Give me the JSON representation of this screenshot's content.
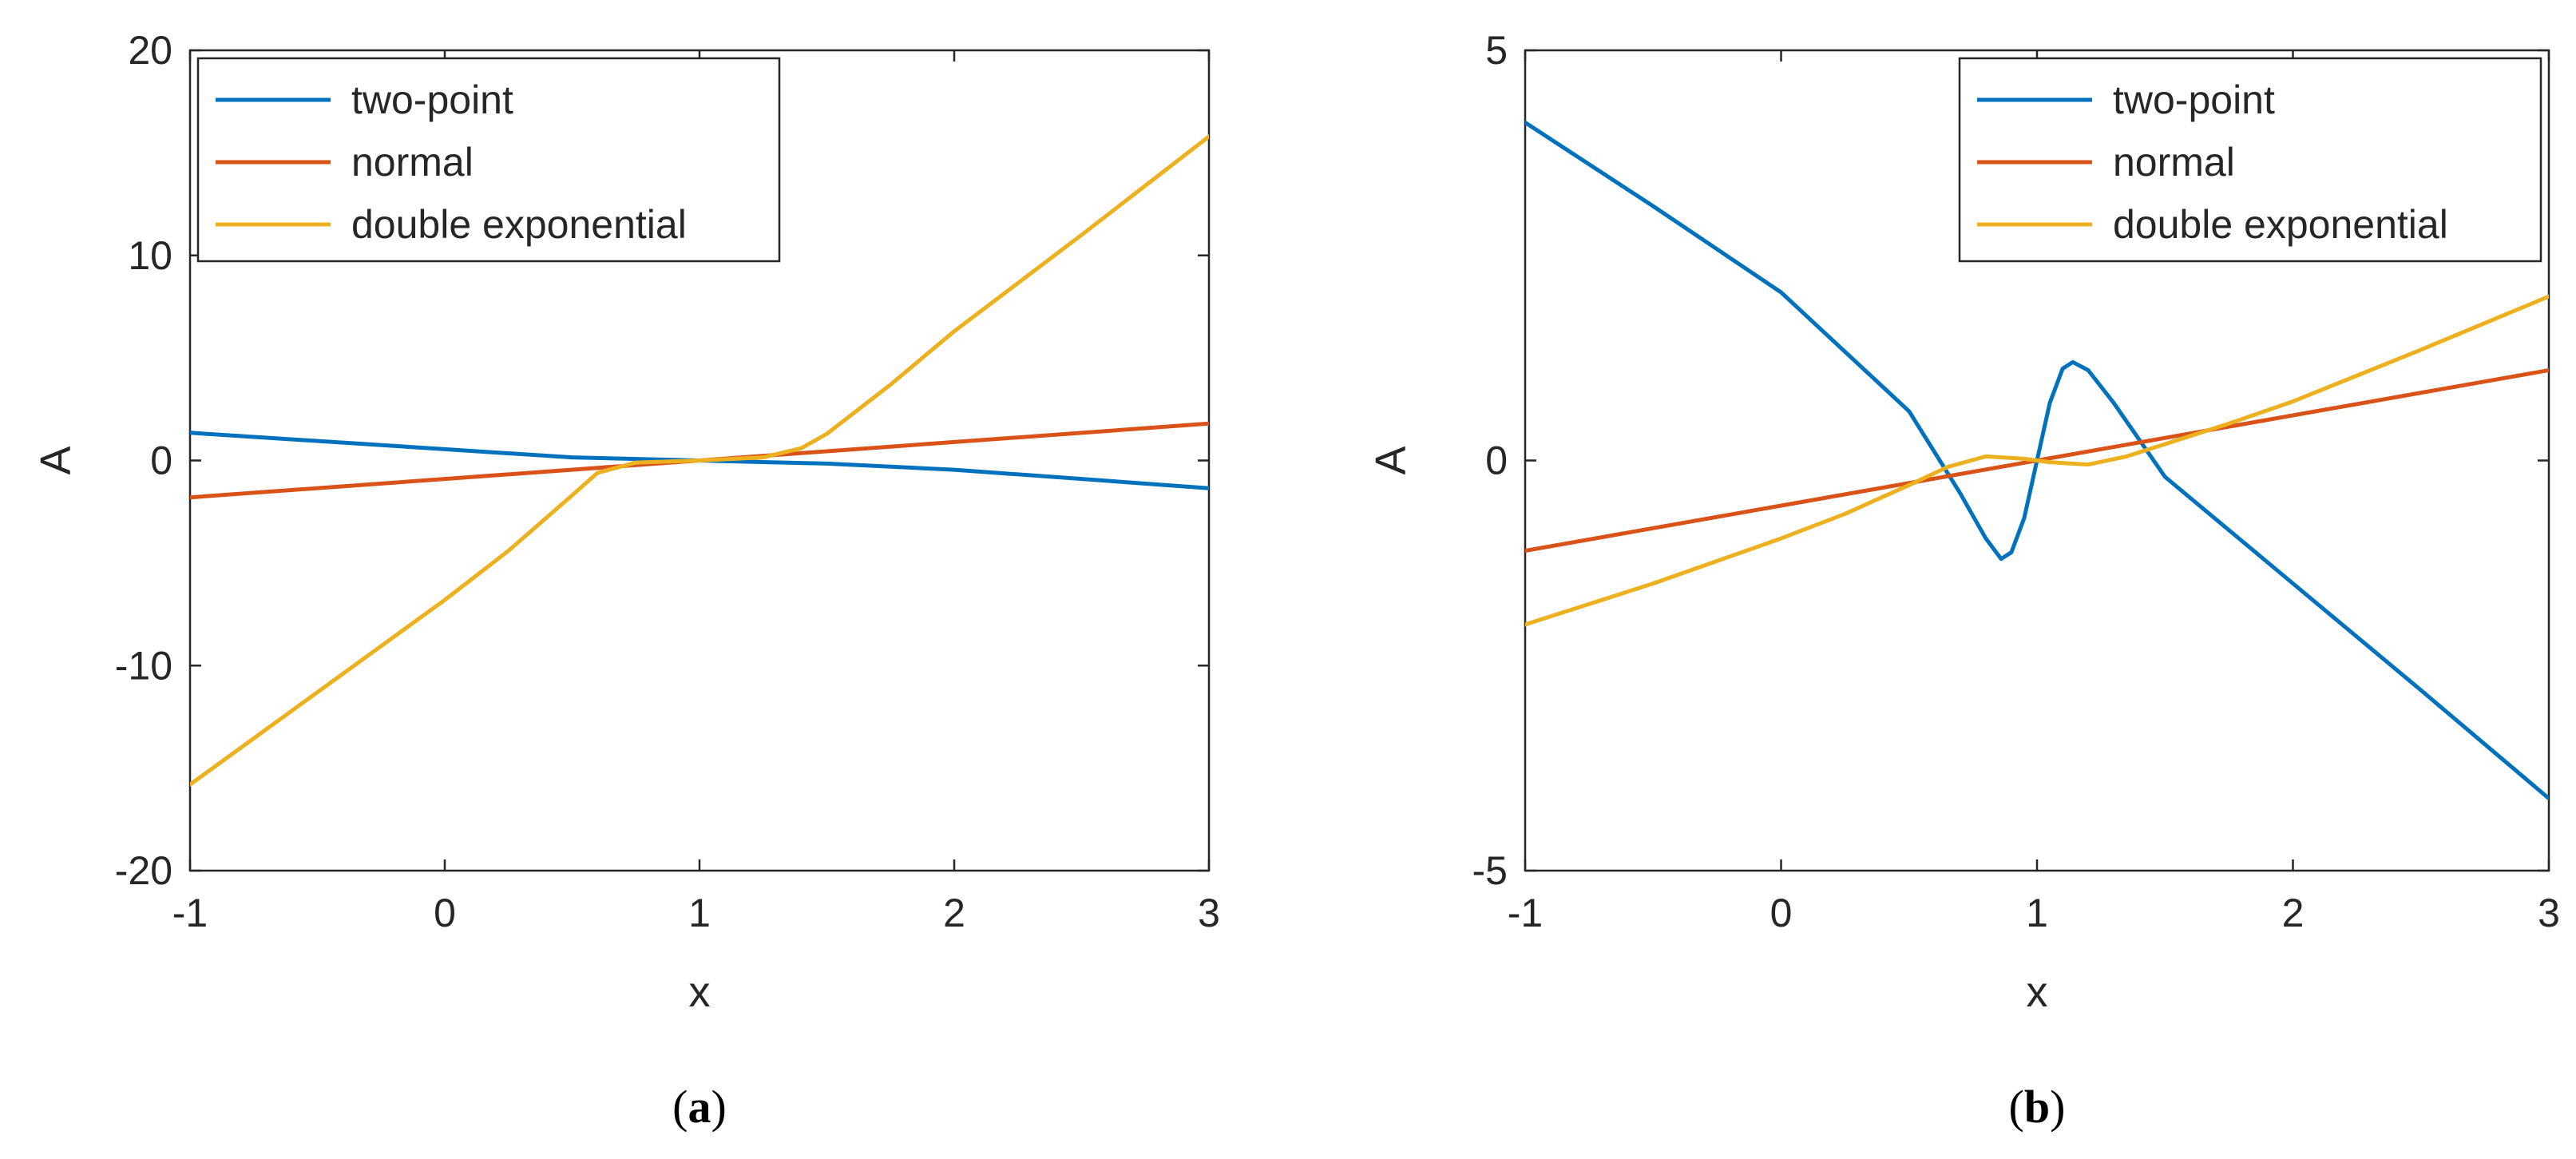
{
  "chart_data": [
    {
      "type": "line",
      "panel_label": "(a)",
      "xlabel": "x",
      "ylabel": "A",
      "xlim": [
        -1,
        3
      ],
      "ylim": [
        -20,
        20
      ],
      "xticks": [
        -1,
        0,
        1,
        2,
        3
      ],
      "yticks": [
        -20,
        -10,
        0,
        10,
        20
      ],
      "grid": false,
      "legend_position": "top-left",
      "series": [
        {
          "name": "two-point",
          "color": "#0072BD",
          "x": [
            -1,
            0,
            0.5,
            1,
            1.5,
            2,
            3
          ],
          "y": [
            1.35,
            0.55,
            0.15,
            0.0,
            -0.15,
            -0.45,
            -1.35
          ]
        },
        {
          "name": "normal",
          "color": "#D95319",
          "x": [
            -1,
            0,
            1,
            2,
            3
          ],
          "y": [
            -1.8,
            -0.9,
            0.0,
            0.9,
            1.8
          ]
        },
        {
          "name": "double exponential",
          "color": "#EDB120",
          "x": [
            -1,
            -0.5,
            0,
            0.25,
            0.5,
            0.6,
            0.75,
            1,
            1.25,
            1.4,
            1.5,
            1.75,
            2,
            2.5,
            3
          ],
          "y": [
            -15.8,
            -11.3,
            -6.8,
            -4.4,
            -1.7,
            -0.6,
            -0.1,
            0.0,
            0.15,
            0.6,
            1.3,
            3.7,
            6.3,
            11.0,
            15.8
          ]
        }
      ]
    },
    {
      "type": "line",
      "panel_label": "(b)",
      "xlabel": "x",
      "ylabel": "A",
      "xlim": [
        -1,
        3
      ],
      "ylim": [
        -5,
        5
      ],
      "xticks": [
        -1,
        0,
        1,
        2,
        3
      ],
      "yticks": [
        -5,
        0,
        5
      ],
      "grid": false,
      "legend_position": "top-right",
      "series": [
        {
          "name": "two-point",
          "color": "#0072BD",
          "x": [
            -1,
            -0.5,
            0,
            0.5,
            0.7,
            0.8,
            0.86,
            0.9,
            0.95,
            1.0,
            1.05,
            1.1,
            1.14,
            1.2,
            1.3,
            1.5,
            2,
            2.5,
            3
          ],
          "y": [
            4.12,
            3.1,
            2.05,
            0.6,
            -0.4,
            -0.95,
            -1.2,
            -1.12,
            -0.7,
            0.0,
            0.7,
            1.12,
            1.2,
            1.1,
            0.7,
            -0.2,
            -1.5,
            -2.8,
            -4.12
          ]
        },
        {
          "name": "normal",
          "color": "#D95319",
          "x": [
            -1,
            0,
            1,
            2,
            3
          ],
          "y": [
            -1.1,
            -0.55,
            0.0,
            0.55,
            1.1
          ]
        },
        {
          "name": "double exponential",
          "color": "#EDB120",
          "x": [
            -1,
            -0.5,
            0,
            0.25,
            0.5,
            0.65,
            0.8,
            0.95,
            1.05,
            1.2,
            1.35,
            1.5,
            1.75,
            2,
            2.5,
            3
          ],
          "y": [
            -2.0,
            -1.5,
            -0.95,
            -0.65,
            -0.3,
            -0.08,
            0.05,
            0.02,
            -0.02,
            -0.05,
            0.05,
            0.2,
            0.45,
            0.72,
            1.35,
            2.0
          ]
        }
      ]
    }
  ]
}
